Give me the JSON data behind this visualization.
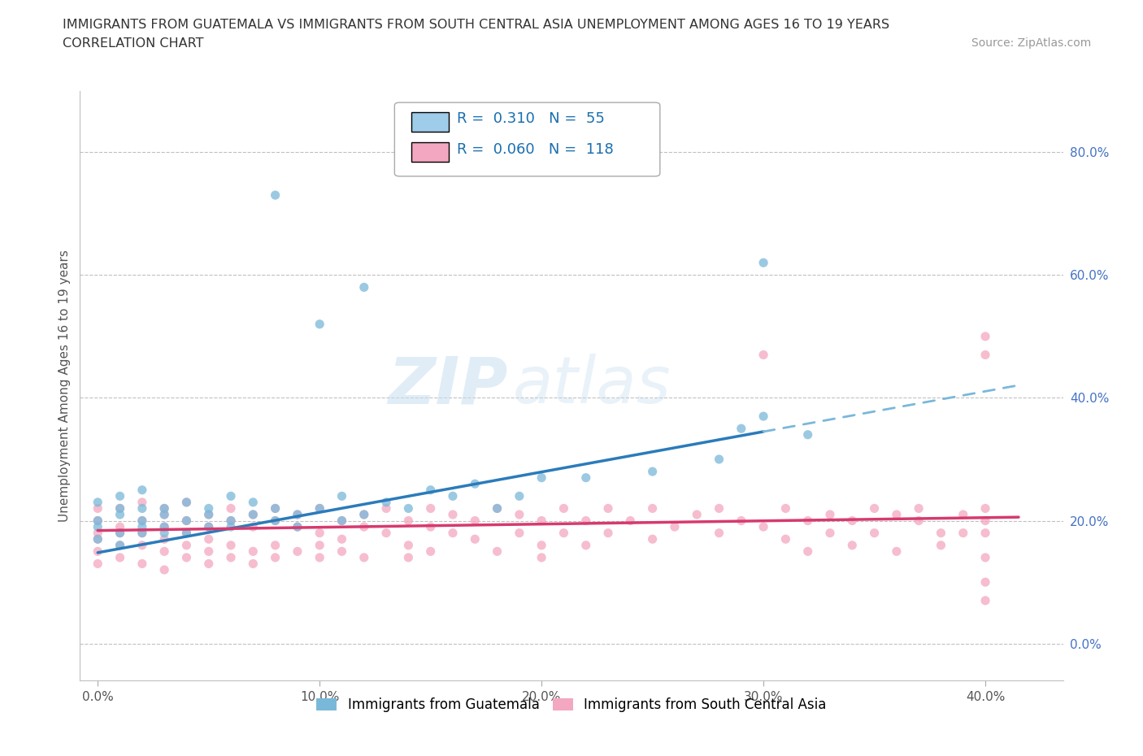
{
  "title_line1": "IMMIGRANTS FROM GUATEMALA VS IMMIGRANTS FROM SOUTH CENTRAL ASIA UNEMPLOYMENT AMONG AGES 16 TO 19 YEARS",
  "title_line2": "CORRELATION CHART",
  "source_text": "Source: ZipAtlas.com",
  "xlabel_ticks": [
    "0.0%",
    "10.0%",
    "20.0%",
    "30.0%",
    "40.0%"
  ],
  "xlabel_vals": [
    0.0,
    0.1,
    0.2,
    0.3,
    0.4
  ],
  "ylabel": "Unemployment Among Ages 16 to 19 years",
  "ylabel_ticks": [
    "0.0%",
    "20.0%",
    "40.0%",
    "60.0%",
    "80.0%"
  ],
  "ylabel_vals": [
    0.0,
    0.2,
    0.4,
    0.6,
    0.8
  ],
  "xlim": [
    -0.008,
    0.435
  ],
  "ylim": [
    -0.06,
    0.9
  ],
  "R_guatemala": 0.31,
  "N_guatemala": 55,
  "R_southcentral": 0.06,
  "N_southcentral": 118,
  "color_guatemala": "#7ab8d9",
  "color_southcentral": "#f4a7c0",
  "color_guatemala_line": "#2b7bba",
  "color_guatemala_line_dashed": "#7ab8d9",
  "color_southcentral_line": "#d63a6e",
  "watermark_color": "#d0e8f5",
  "legend_R_color": "#1a6faf",
  "legend_patch_blue": "#9fcce8",
  "legend_patch_pink": "#f4a7c0"
}
